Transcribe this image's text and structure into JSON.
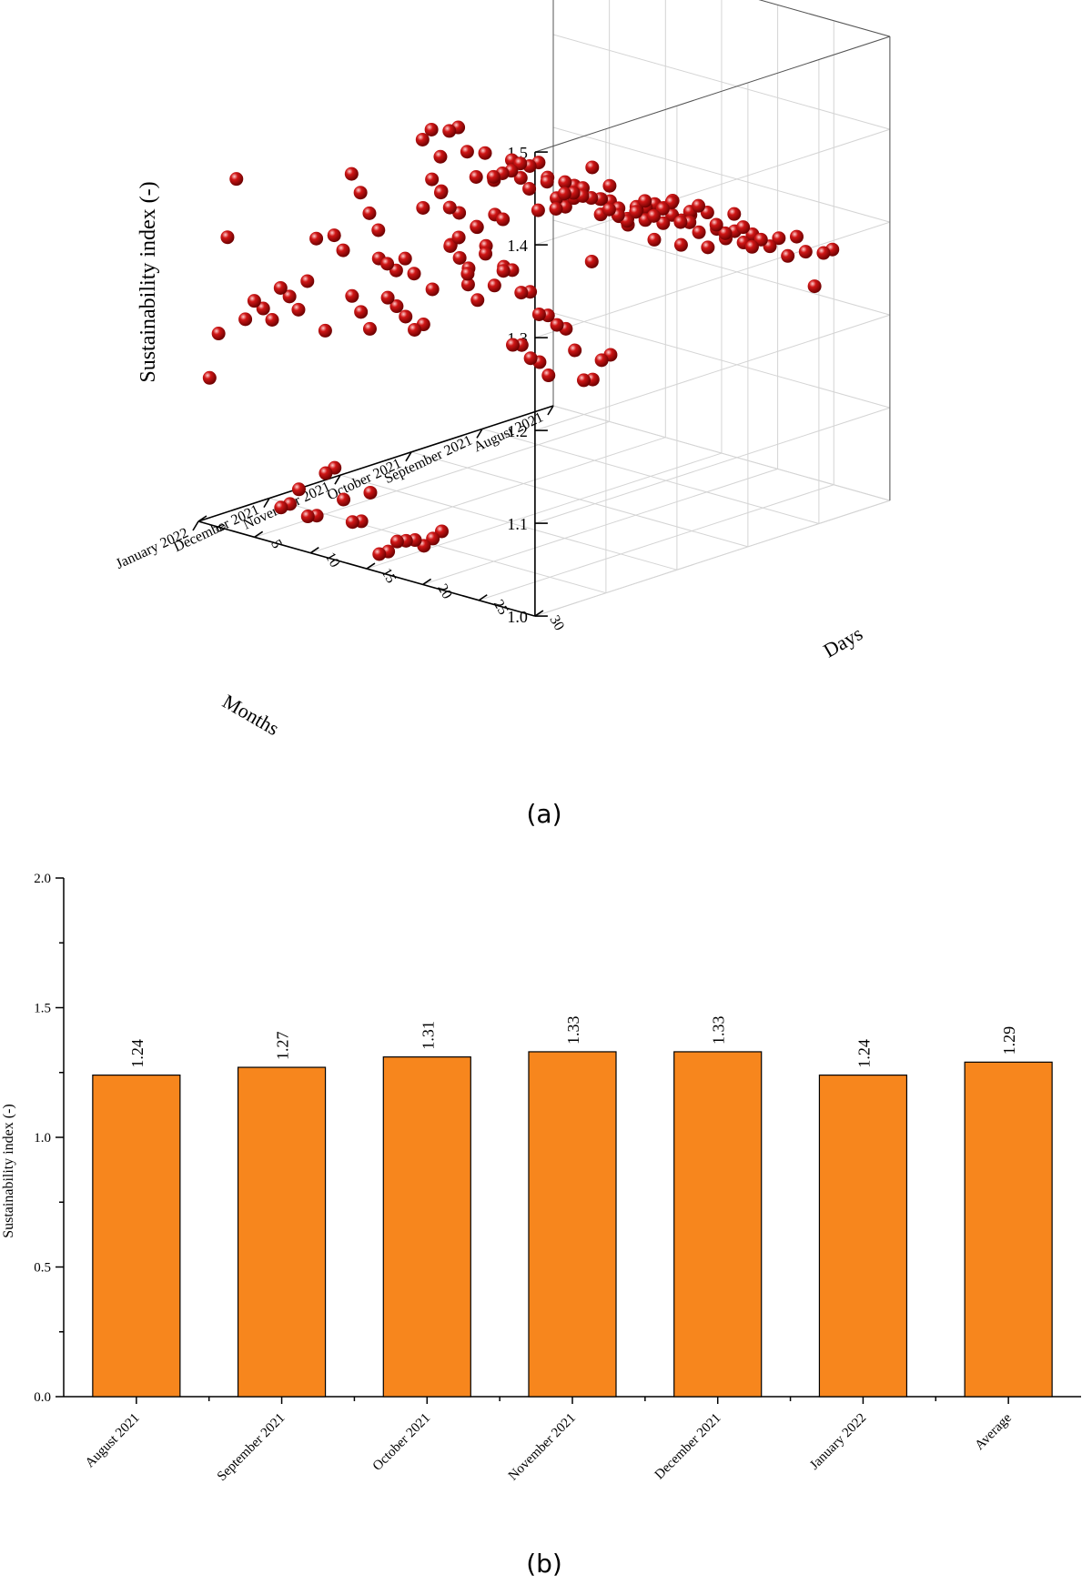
{
  "chart_data": [
    {
      "panel": "a",
      "type": "scatter",
      "projection": "3d",
      "ylabel": "Sustainability index (-)",
      "xlabel": "Months",
      "zlabel": "Days",
      "y_ticks": [
        "1.0",
        "1.1",
        "1.2",
        "1.3",
        "1.4",
        "1.5"
      ],
      "ylim": [
        1.0,
        1.5
      ],
      "month_ticks": [
        "August 2021",
        "September 2021",
        "October 2021",
        "November 2021",
        "December 2021",
        "January 2022"
      ],
      "day_ticks": [
        "0",
        "5",
        "10",
        "15",
        "20",
        "25",
        "30"
      ],
      "zlim": [
        0,
        30
      ],
      "grid": true,
      "marker_color": "#d01616",
      "series": [
        {
          "month": 0,
          "days": [
            1,
            2,
            3,
            4,
            5,
            6,
            7,
            8,
            9,
            10,
            11,
            12,
            13,
            14,
            15,
            16,
            17,
            18,
            19,
            20,
            21,
            22,
            23,
            24,
            25,
            26,
            27,
            28,
            29,
            30,
            31
          ],
          "values": [
            1.232,
            1.237,
            1.238,
            1.24,
            1.243,
            1.236,
            1.234,
            1.232,
            1.246,
            1.262,
            1.25,
            1.262,
            1.273,
            1.256,
            1.26,
            1.282,
            1.279,
            1.27,
            1.265,
            1.29,
            1.28,
            1.263,
            1.275,
            1.272,
            1.285,
            1.27,
            1.295,
            1.283,
            1.25,
            1.29,
            1.298
          ]
        },
        {
          "month": 1,
          "days": [
            1,
            2,
            3,
            4,
            5,
            6,
            7,
            8,
            9,
            10,
            11,
            12,
            13,
            14,
            15,
            16,
            17,
            18,
            19,
            20,
            21,
            22,
            23,
            24,
            25,
            26,
            27,
            28,
            29,
            30
          ],
          "values": [
            1.275,
            1.283,
            1.29,
            1.302,
            1.279,
            1.26,
            1.295,
            1.27,
            1.303,
            1.29,
            1.305,
            1.23,
            1.285,
            1.32,
            1.3,
            1.293,
            1.31,
            1.3,
            1.283,
            1.305,
            1.318,
            1.29,
            1.33,
            1.312,
            1.3,
            1.324,
            1.318,
            1.33,
            1.322,
            1.335
          ]
        },
        {
          "month": 2,
          "days": [
            1,
            2,
            3,
            4,
            5,
            6,
            7,
            8,
            9,
            10,
            11,
            12,
            13,
            14,
            15,
            16,
            17,
            18,
            19,
            20,
            21,
            22,
            23,
            24,
            25,
            26,
            27,
            28,
            29,
            30,
            31
          ],
          "values": [
            1.34,
            1.355,
            1.33,
            1.362,
            1.37,
            1.348,
            1.325,
            1.355,
            1.33,
            1.292,
            1.36,
            1.345,
            1.362,
            1.37,
            1.358,
            1.34,
            1.335,
            1.362,
            1.355,
            1.39,
            1.36,
            1.362,
            1.35,
            1.345,
            1.365,
            1.372,
            1.38,
            1.38,
            1.392,
            1.375,
            1.385
          ]
        },
        {
          "month": 3,
          "days": [
            1,
            2,
            3,
            4,
            5,
            6,
            7,
            8,
            9,
            10,
            11,
            12,
            13,
            14,
            15,
            16,
            17,
            18,
            19,
            20,
            21,
            22,
            23,
            24,
            25,
            26,
            27,
            28,
            29,
            30
          ],
          "values": [
            1.328,
            1.312,
            1.294,
            1.28,
            1.248,
            1.245,
            1.262,
            1.25,
            1.325,
            1.36,
            1.35,
            1.338,
            1.31,
            1.275,
            1.33,
            1.305,
            1.275,
            1.295,
            1.3,
            1.28,
            1.285,
            1.265,
            1.268,
            1.262,
            1.262,
            1.243,
            1.215,
            1.22,
            1.245,
            1.255
          ]
        },
        {
          "month": 4,
          "days": [
            1,
            2,
            3,
            4,
            5,
            6,
            7,
            8,
            9,
            10,
            11,
            12,
            13,
            14,
            15,
            16,
            17,
            18,
            19,
            20,
            21,
            22,
            23,
            24,
            25,
            26,
            27,
            28,
            29,
            30,
            31
          ],
          "values": [
            1.23,
            1.225,
            1.215,
            1.25,
            1.3,
            1.205,
            1.312,
            1.3,
            1.255,
            1.242,
            1.228,
            1.308,
            1.27,
            1.265,
            1.258,
            1.248,
            1.258,
            1.3,
            1.41,
            1.355,
            1.395,
            1.322,
            1.388,
            1.372,
            1.41,
            1.358,
            1.278,
            1.282,
            1.272,
            1.272,
            1.262
          ]
        },
        {
          "month": 5,
          "days": [
            1,
            2,
            3,
            4,
            5,
            6,
            7,
            8,
            9,
            10,
            11,
            12,
            13,
            14,
            15,
            16,
            17,
            18,
            19,
            20,
            21,
            22,
            23,
            24,
            25,
            26,
            27,
            28,
            29,
            30,
            31
          ],
          "values": [
            1.158,
            1.21,
            1.318,
            1.385,
            1.238,
            1.262,
            1.258,
            1.25,
            1.052,
            1.06,
            1.08,
            1.055,
            1.06,
            1.11,
            1.12,
            1.09,
            1.07,
            1.075,
            1.11,
            1.048,
            1.055,
            1.07,
            1.075,
            1.08,
            1.078,
            1.09,
            1.102,
            1.415,
            1.405,
            1.398,
            1.368
          ]
        }
      ]
    },
    {
      "panel": "b",
      "type": "bar",
      "categories": [
        "August 2021",
        "September 2021",
        "October 2021",
        "November 2021",
        "December 2021",
        "January 2022",
        "Average"
      ],
      "values": [
        1.24,
        1.27,
        1.31,
        1.33,
        1.33,
        1.24,
        1.29
      ],
      "value_labels": [
        "1.24",
        "1.27",
        "1.31",
        "1.33",
        "1.33",
        "1.24",
        "1.29"
      ],
      "ylabel": "Sustainability index (-)",
      "ylim": [
        0,
        2.0
      ],
      "y_ticks": [
        "0.0",
        "0.5",
        "1.0",
        "1.5",
        "2.0"
      ],
      "bar_color": "#f7861d",
      "grid": false
    }
  ],
  "captions": {
    "a": "(a)",
    "b": "(b)"
  }
}
